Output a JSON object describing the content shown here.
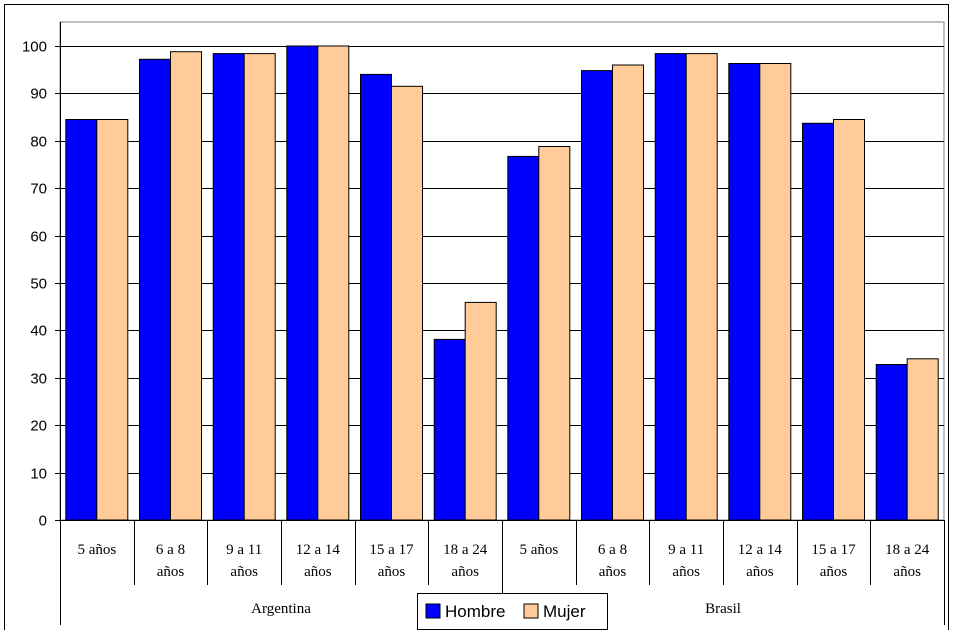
{
  "chart_data": {
    "type": "bar",
    "title": "",
    "xlabel": "",
    "ylabel": "",
    "ylim": [
      0,
      100
    ],
    "yticks": [
      "0",
      "10",
      "20",
      "30",
      "40",
      "50",
      "60",
      "70",
      "80",
      "90",
      "100"
    ],
    "grid": true,
    "legend_position": "bottom-center",
    "groups": [
      {
        "name": "Argentina",
        "start": 0,
        "count": 6
      },
      {
        "name": "Brasil",
        "start": 6,
        "count": 6
      }
    ],
    "categories": [
      [
        "5 años"
      ],
      [
        "6 a 8",
        "años"
      ],
      [
        "9 a 11",
        "años"
      ],
      [
        "12 a 14",
        "años"
      ],
      [
        "15 a 17",
        "años"
      ],
      [
        "18 a 24",
        "años"
      ],
      [
        "5 años"
      ],
      [
        "6 a 8",
        "años"
      ],
      [
        "9 a 11",
        "años"
      ],
      [
        "12 a 14",
        "años"
      ],
      [
        "15 a 17",
        "años"
      ],
      [
        "18 a 24",
        "años"
      ]
    ],
    "series": [
      {
        "name": "Hombre",
        "color": "#0000FF",
        "values": [
          84.5,
          97.2,
          98.4,
          100,
          94,
          38.1,
          76.7,
          94.8,
          98.4,
          96.3,
          83.7,
          32.8
        ]
      },
      {
        "name": "Mujer",
        "color": "#FFCC99",
        "values": [
          84.5,
          98.8,
          98.4,
          100,
          91.5,
          45.9,
          78.8,
          96,
          98.4,
          96.3,
          84.5,
          34
        ]
      }
    ]
  }
}
